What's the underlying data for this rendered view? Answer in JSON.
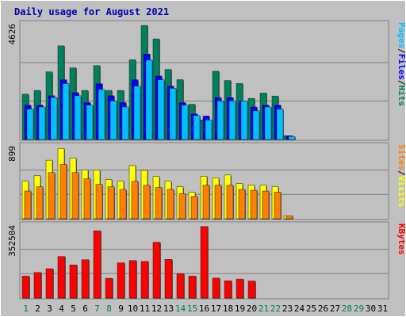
{
  "chart_data": {
    "type": "bar",
    "title": "Daily usage for August 2021",
    "days": [
      "1",
      "2",
      "3",
      "4",
      "5",
      "6",
      "7",
      "8",
      "9",
      "10",
      "11",
      "12",
      "13",
      "14",
      "15",
      "16",
      "17",
      "18",
      "19",
      "20",
      "21",
      "22",
      "23",
      "24",
      "25",
      "26",
      "27",
      "28",
      "29",
      "30",
      "31"
    ],
    "weekend_days": [
      "1",
      "7",
      "8",
      "14",
      "15",
      "21",
      "22",
      "28",
      "29"
    ],
    "panels": [
      {
        "id": "hits_files_pages",
        "ymax": 4626,
        "ymax_label": "4626",
        "side_label": [
          "Pages",
          "/",
          "Files",
          "/",
          "Hits"
        ],
        "series": [
          {
            "name": "Hits",
            "color": "#00805c",
            "values": [
              1799,
              1947,
              2685,
              3717,
              2843,
              1947,
              2931,
              1947,
              1947,
              3164,
              4530,
              3994,
              2780,
              2376,
              1399,
              776,
              2711,
              2342,
              2222,
              1631,
              1842,
              1726,
              150,
              0,
              0,
              0,
              0,
              0,
              0,
              0,
              0
            ]
          },
          {
            "name": "Files",
            "color": "#0000ff",
            "values": [
              1364,
              1364,
              1736,
              2371,
              1862,
              1465,
              2218,
              1736,
              1465,
              2371,
              3395,
              2523,
              2119,
              1465,
              1018,
              930,
              1665,
              1665,
              1528,
              1293,
              1364,
              1364,
              150,
              0,
              0,
              0,
              0,
              0,
              0,
              0,
              0
            ]
          },
          {
            "name": "Pages",
            "color": "#00c0ff",
            "values": [
              1208,
              1293,
              1665,
              2218,
              1736,
              1364,
              1986,
              1528,
              1293,
              2119,
              3151,
              2371,
              2033,
              1364,
              950,
              776,
              1528,
              1528,
              1528,
              1137,
              1293,
              1208,
              119,
              0,
              0,
              0,
              0,
              0,
              0,
              0,
              0
            ]
          }
        ]
      },
      {
        "id": "visits_sites",
        "ymax": 899,
        "ymax_label": "899",
        "side_label": [
          "Sites",
          "/",
          "Visits"
        ],
        "series": [
          {
            "name": "Visits",
            "color": "#ffff00",
            "values": [
              457,
              524,
              714,
              857,
              738,
              595,
              595,
              476,
              457,
              648,
              590,
              514,
              457,
              390,
              324,
              519,
              500,
              533,
              428,
              409,
              409,
              390,
              35,
              0,
              0,
              0,
              0,
              0,
              0,
              0,
              0
            ]
          },
          {
            "name": "Sites",
            "color": "#ff8000",
            "values": [
              338,
              390,
              562,
              662,
              562,
              486,
              419,
              390,
              357,
              457,
              409,
              381,
              357,
              305,
              271,
              409,
              409,
              409,
              357,
              347,
              338,
              324,
              35,
              0,
              0,
              0,
              0,
              0,
              0,
              0,
              0
            ]
          }
        ]
      },
      {
        "id": "kbytes",
        "ymax": 352504,
        "ymax_label": "352504",
        "side_label": [
          "KBytes"
        ],
        "series": [
          {
            "name": "KBytes",
            "color": "#ff0000",
            "values": [
              104574,
              122074,
              140112,
              198367,
              158270,
              183112,
              321306,
              94320,
              168214,
              178928,
              174616,
              266548,
              184452,
              116204,
              104574,
              341724,
              95372,
              82344,
              90552,
              80960,
              0,
              0,
              0,
              0,
              0,
              0,
              0,
              0,
              0,
              0,
              0
            ]
          }
        ]
      }
    ]
  }
}
